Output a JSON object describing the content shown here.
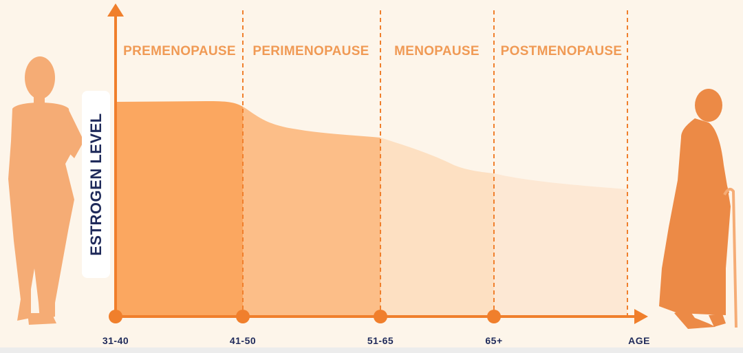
{
  "colors": {
    "background": "#fdf5ea",
    "axis": "#f07f2c",
    "stage_text": "#f09a55",
    "age_text": "#1f2a5a",
    "premenopause_fill": "#fba760",
    "perimenopause_fill": "#fcbe88",
    "menopause_fill": "#fde0c2",
    "postmenopause_fill": "#fde8d4",
    "young_woman": "#f5ac75",
    "elderly_woman": "#ec8a46"
  },
  "icons": {
    "young_woman": "standing-woman-silhouette-icon",
    "elderly_woman": "elderly-woman-with-cane-silhouette-icon"
  },
  "chart": {
    "y_axis_label": "ESTROGEN LEVEL",
    "x_axis_label": "AGE",
    "stages": [
      "PREMENOPAUSE",
      "PERIMENOPAUSE",
      "MENOPAUSE",
      "POSTMENOPAUSE"
    ],
    "age_ticks": [
      "31-40",
      "41-50",
      "51-65",
      "65+"
    ]
  }
}
